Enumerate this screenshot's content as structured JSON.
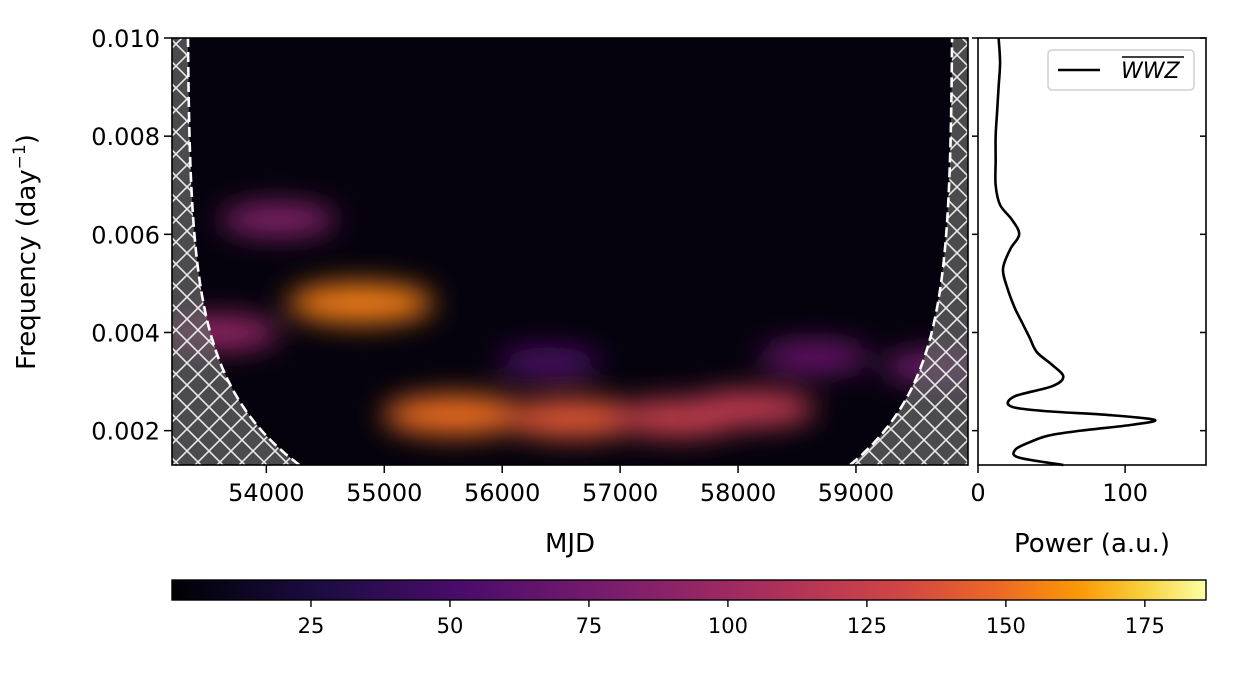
{
  "chart_data": [
    {
      "type": "heatmap",
      "title": "",
      "xlabel": "MJD",
      "ylabel_main": "Frequency (day",
      "ylabel_sup": "−1",
      "ylabel_close": ")",
      "xlim": [
        53200,
        59950
      ],
      "ylim": [
        0.0013,
        0.01
      ],
      "xticks": [
        54000,
        55000,
        56000,
        57000,
        58000,
        59000
      ],
      "xtick_labels": [
        "54000",
        "55000",
        "56000",
        "57000",
        "58000",
        "59000"
      ],
      "yticks": [
        0.002,
        0.004,
        0.006,
        0.008,
        0.01
      ],
      "ytick_labels": [
        "0.002",
        "0.004",
        "0.006",
        "0.008",
        "0.010"
      ],
      "cone_of_influence": "hatched regions near both time edges",
      "colormap": "inferno",
      "hotspots": [
        {
          "mjd": 55600,
          "freq": 0.00232,
          "power": 150
        },
        {
          "mjd": 56600,
          "freq": 0.00225,
          "power": 140
        },
        {
          "mjd": 57500,
          "freq": 0.00226,
          "power": 125
        },
        {
          "mjd": 58100,
          "freq": 0.00245,
          "power": 120
        },
        {
          "mjd": 54800,
          "freq": 0.0046,
          "power": 155
        },
        {
          "mjd": 54100,
          "freq": 0.0063,
          "power": 85
        },
        {
          "mjd": 53600,
          "freq": 0.004,
          "power": 95
        },
        {
          "mjd": 58650,
          "freq": 0.0035,
          "power": 70
        },
        {
          "mjd": 56400,
          "freq": 0.0034,
          "power": 55
        },
        {
          "mjd": 59700,
          "freq": 0.0033,
          "power": 75
        }
      ]
    },
    {
      "type": "line",
      "xlabel": "Power (a.u.)",
      "xlim": [
        0,
        155
      ],
      "ylim": [
        0.0013,
        0.01
      ],
      "xticks": [
        0,
        100
      ],
      "xtick_labels": [
        "0",
        "100"
      ],
      "legend": "WWZ",
      "legend_position": "top-right",
      "series": [
        {
          "name": "WWZ",
          "freq": [
            0.0013,
            0.00145,
            0.0016,
            0.00175,
            0.0019,
            0.002,
            0.00212,
            0.00222,
            0.00232,
            0.0024,
            0.0025,
            0.0027,
            0.0029,
            0.0031,
            0.00335,
            0.0036,
            0.0039,
            0.0042,
            0.0045,
            0.0049,
            0.0053,
            0.0057,
            0.006,
            0.0063,
            0.0066,
            0.007,
            0.0075,
            0.008,
            0.0085,
            0.009,
            0.0095,
            0.01
          ],
          "power": [
            58,
            28,
            25,
            34,
            48,
            70,
            105,
            120,
            88,
            45,
            22,
            25,
            50,
            58,
            50,
            40,
            35,
            30,
            25,
            20,
            17,
            22,
            28,
            23,
            15,
            12,
            12,
            12,
            13,
            14,
            15,
            14
          ]
        }
      ]
    },
    {
      "type": "colorbar",
      "range": [
        0,
        186
      ],
      "ticks": [
        25,
        50,
        75,
        100,
        125,
        150,
        175
      ],
      "tick_labels": [
        "25",
        "50",
        "75",
        "100",
        "125",
        "150",
        "175"
      ]
    }
  ]
}
